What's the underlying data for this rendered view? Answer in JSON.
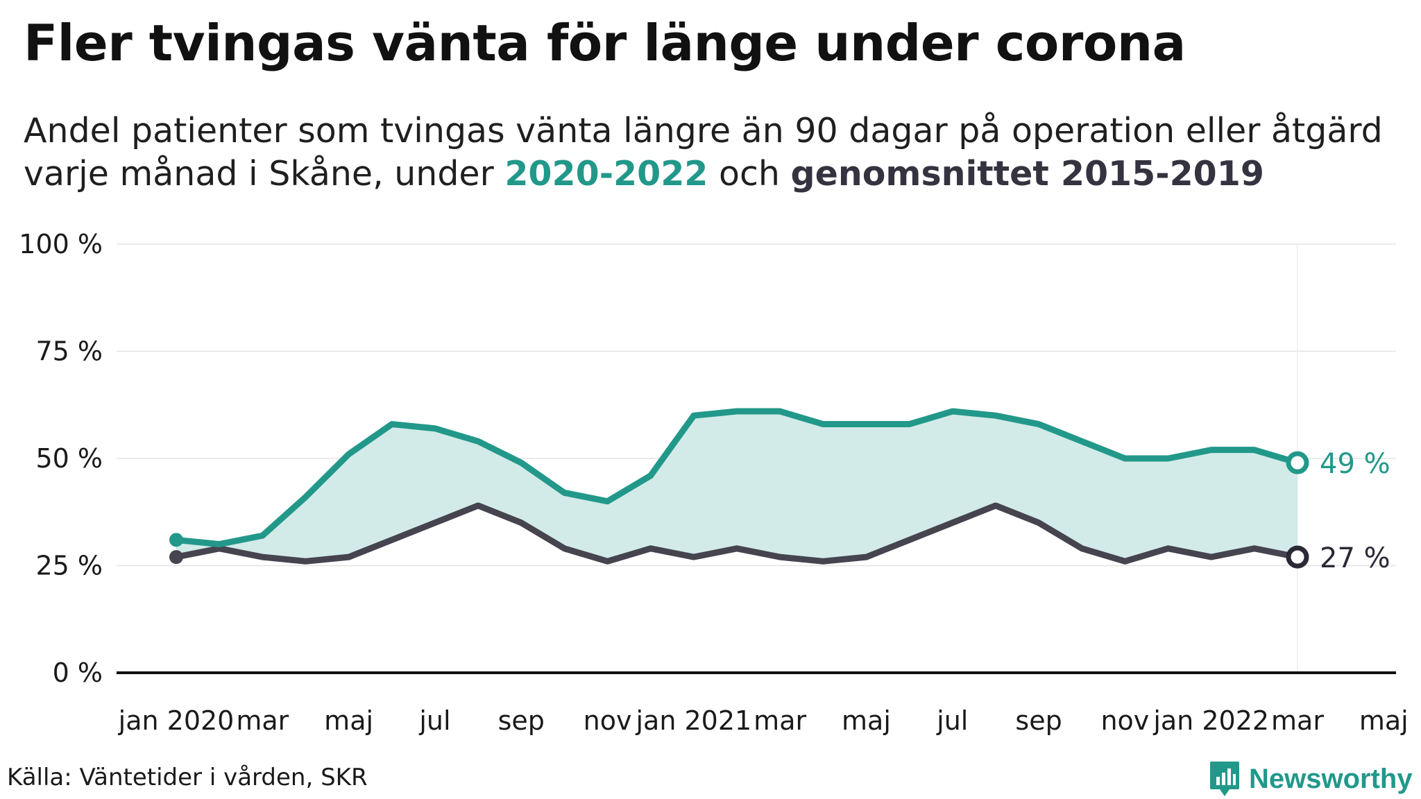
{
  "title": "Fler tvingas vänta för länge under corona",
  "subtitle": {
    "line1": "Andel patienter som tvingas vänta längre än 90 dagar på operation eller åtgärd",
    "line2_prefix": "varje månad i Skåne, under ",
    "highlight_current": "2020-2022",
    "line2_middle": " och ",
    "highlight_average": "genomsnittet 2015-2019"
  },
  "colors": {
    "current": "#22988a",
    "average": "#45444f",
    "area": "#d2ebe8",
    "grid": "#e3e3e3",
    "axis": "#111111"
  },
  "chart_data": {
    "type": "line",
    "x": [
      "2020-01",
      "2020-02",
      "2020-03",
      "2020-04",
      "2020-05",
      "2020-06",
      "2020-07",
      "2020-08",
      "2020-09",
      "2020-10",
      "2020-11",
      "2020-12",
      "2021-01",
      "2021-02",
      "2021-03",
      "2021-04",
      "2021-05",
      "2021-06",
      "2021-07",
      "2021-08",
      "2021-09",
      "2021-10",
      "2021-11",
      "2021-12",
      "2022-01",
      "2022-02",
      "2022-03"
    ],
    "series": [
      {
        "key": "current",
        "values": [
          31,
          30,
          32,
          41,
          51,
          58,
          57,
          54,
          49,
          42,
          40,
          46,
          60,
          61,
          61,
          58,
          58,
          58,
          61,
          60,
          58,
          54,
          50,
          50,
          52,
          52,
          49
        ]
      },
      {
        "key": "average",
        "values": [
          27,
          29,
          27,
          26,
          27,
          31,
          35,
          39,
          35,
          29,
          26,
          29,
          27,
          29,
          27,
          26,
          27,
          31,
          35,
          39,
          35,
          29,
          26,
          29,
          27,
          29,
          27
        ]
      }
    ],
    "fill_between": true,
    "ylim": [
      0,
      100
    ],
    "y_ticks": [
      0,
      25,
      50,
      75,
      100
    ],
    "y_tick_labels": [
      "0 %",
      "25 %",
      "50 %",
      "75 %",
      "100 %"
    ],
    "x_ticks": [
      "2020-01",
      "2020-03",
      "2020-05",
      "2020-07",
      "2020-09",
      "2020-11",
      "2021-01",
      "2021-03",
      "2021-05",
      "2021-07",
      "2021-09",
      "2021-11",
      "2022-01",
      "2022-03",
      "2022-05"
    ],
    "x_tick_labels": [
      "jan 2020",
      "mar",
      "maj",
      "jul",
      "sep",
      "nov",
      "jan 2021",
      "mar",
      "maj",
      "jul",
      "sep",
      "nov",
      "jan 2022",
      "mar",
      "maj"
    ],
    "end_labels": {
      "current": "49 %",
      "average": "27 %"
    },
    "grid": true
  },
  "source": "Källa: Väntetider i vården, SKR",
  "brand": {
    "name": "Newsworthy",
    "logo_icon": "newsworthy-logo-icon"
  }
}
